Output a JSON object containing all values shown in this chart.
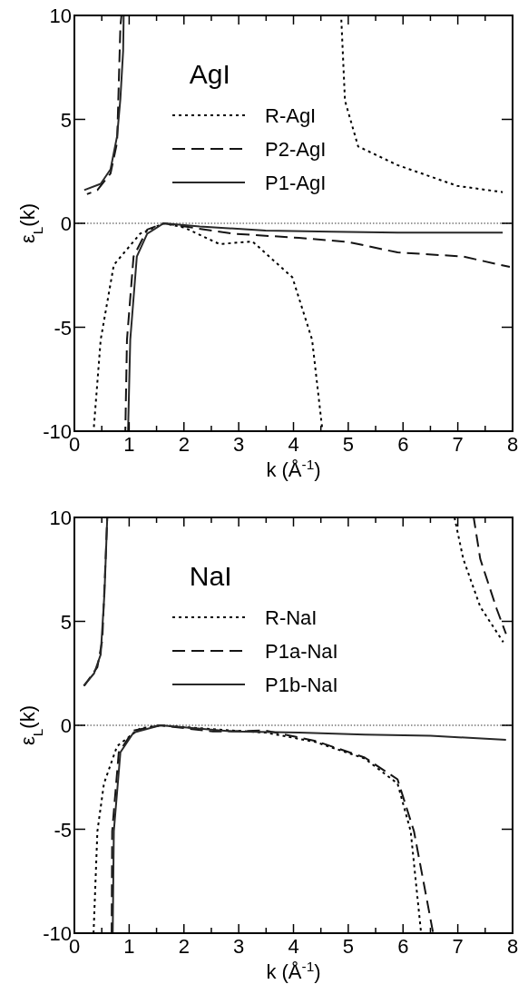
{
  "chart_data": [
    {
      "type": "line",
      "xlabel": "k (Å$^{-1}$)",
      "ylabel": "ε$_{L}$(k)",
      "annotations": [
        "AgI"
      ],
      "xlim": [
        0,
        8
      ],
      "ylim": [
        -10,
        10
      ],
      "xticks": [
        0,
        {
          "value": 0.5,
          "label": null
        },
        1,
        {
          "value": 1.5,
          "label": null
        },
        2,
        {
          "value": 2.5,
          "label": null
        },
        3,
        {
          "value": 3.5,
          "label": null
        },
        4,
        {
          "value": 4.5,
          "label": null
        },
        5,
        {
          "value": 5.5,
          "label": null
        },
        6,
        {
          "value": 6.5,
          "label": null
        },
        7,
        {
          "value": 7.5,
          "label": null
        },
        8
      ],
      "yticks": [
        -10,
        -5,
        0,
        5,
        10
      ],
      "legend": "top",
      "grid": false,
      "marker": "none",
      "ref_lines": [
        {
          "axis": "y",
          "value": 0,
          "color": "#000000",
          "line_style": "dotted"
        }
      ],
      "series": [
        {
          "name": "R-AgI",
          "color": "#000000",
          "line_style": "dotted",
          "x": [
            0.35,
            0.48,
            0.72,
            1.2,
            1.63,
            2.0,
            2.65,
            3.25,
            3.98,
            4.34,
            4.53,
            null,
            4.87,
            4.94,
            5.18,
            5.9,
            6.99,
            7.82
          ],
          "values": [
            -10,
            -5.6,
            -2,
            -0.5,
            0,
            -0.2,
            -1,
            -0.87,
            -2.6,
            -5.6,
            -10,
            null,
            10,
            5.9,
            3.7,
            2.8,
            1.8,
            1.5
          ]
        },
        {
          "name": "P2-AgI",
          "color": "#141414",
          "line_style": "dashed",
          "x": [
            0.23,
            0.42,
            0.66,
            0.78,
            0.84,
            0.86,
            null,
            0.93,
            0.96,
            1.08,
            1.33,
            1.63,
            2.89,
            4.1,
            5.0,
            5.9,
            7.1,
            7.95
          ],
          "values": [
            1.4,
            1.6,
            2.4,
            3.9,
            9.5,
            10,
            null,
            -10,
            -5.6,
            -1.6,
            -0.3,
            0,
            -0.5,
            -0.7,
            -0.9,
            -1.4,
            -1.6,
            -2.1
          ]
        },
        {
          "name": "P1-AgI",
          "color": "#282828",
          "line_style": "solid",
          "x": [
            0.18,
            0.48,
            0.66,
            0.78,
            0.84,
            0.89,
            0.9,
            null,
            0.98,
            1.02,
            1.14,
            1.33,
            1.63,
            2.29,
            3.49,
            4.7,
            5.9,
            7.82
          ],
          "values": [
            1.6,
            1.9,
            2.6,
            4.2,
            6,
            8.3,
            10,
            null,
            -10,
            -5.6,
            -1.6,
            -0.5,
            0,
            -0.15,
            -0.35,
            -0.4,
            -0.45,
            -0.45
          ]
        }
      ]
    },
    {
      "type": "line",
      "xlabel": "k (Å$^{-1}$)",
      "ylabel": "ε$_{L}$(k)",
      "annotations": [
        "NaI"
      ],
      "xlim": [
        0,
        8
      ],
      "ylim": [
        -10,
        10
      ],
      "xticks": [
        0,
        {
          "value": 0.5,
          "label": null
        },
        1,
        {
          "value": 1.5,
          "label": null
        },
        2,
        {
          "value": 2.5,
          "label": null
        },
        3,
        {
          "value": 3.5,
          "label": null
        },
        4,
        {
          "value": 4.5,
          "label": null
        },
        5,
        {
          "value": 5.5,
          "label": null
        },
        6,
        {
          "value": 6.5,
          "label": null
        },
        7,
        {
          "value": 7.5,
          "label": null
        },
        8
      ],
      "yticks": [
        -10,
        -5,
        0,
        5,
        10
      ],
      "legend": "top",
      "grid": false,
      "marker": "none",
      "ref_lines": [
        {
          "axis": "y",
          "value": 0,
          "color": "#000000",
          "line_style": "dotted"
        }
      ],
      "series": [
        {
          "name": "R-NaI",
          "color": "#000000",
          "line_style": "dotted",
          "x": [
            0.35,
            0.42,
            0.54,
            0.78,
            1.2,
            1.57,
            2.89,
            3.49,
            4.4,
            5.3,
            5.9,
            6.14,
            6.33,
            null,
            6.94,
            7.1,
            7.41,
            7.83
          ],
          "values": [
            -10,
            -5.1,
            -2.8,
            -1,
            -0.15,
            0,
            -0.25,
            -0.35,
            -0.8,
            -1.6,
            -2.8,
            -5.1,
            -10,
            null,
            10,
            8,
            5.7,
            4
          ]
        },
        {
          "name": "P1a-NaI",
          "color": "#141414",
          "line_style": "dashed",
          "x": [
            0.18,
            0.42,
            0.51,
            0.57,
            0.6,
            null,
            0.68,
            0.69,
            0.81,
            1.08,
            1.57,
            2.53,
            3.49,
            4.4,
            5.3,
            5.9,
            6.2,
            6.55,
            null,
            7.29,
            7.41,
            7.71,
            7.88
          ],
          "values": [
            1.9,
            2.8,
            4.1,
            8,
            10,
            null,
            -10,
            -5.1,
            -1.3,
            -0.25,
            0,
            -0.3,
            -0.25,
            -0.75,
            -1.55,
            -2.6,
            -5.1,
            -10,
            null,
            10,
            8,
            5.6,
            4.4
          ]
        },
        {
          "name": "P1b-NaI",
          "color": "#282828",
          "line_style": "solid",
          "x": [
            0.17,
            0.36,
            0.48,
            0.55,
            0.6,
            null,
            0.7,
            0.72,
            0.84,
            1.08,
            1.57,
            2.89,
            4.1,
            5.3,
            6.5,
            7.88
          ],
          "values": [
            1.9,
            2.5,
            3.4,
            6.4,
            10,
            null,
            -10,
            -5.1,
            -1.3,
            -0.35,
            0,
            -0.3,
            -0.35,
            -0.45,
            -0.5,
            -0.7
          ]
        }
      ]
    }
  ]
}
